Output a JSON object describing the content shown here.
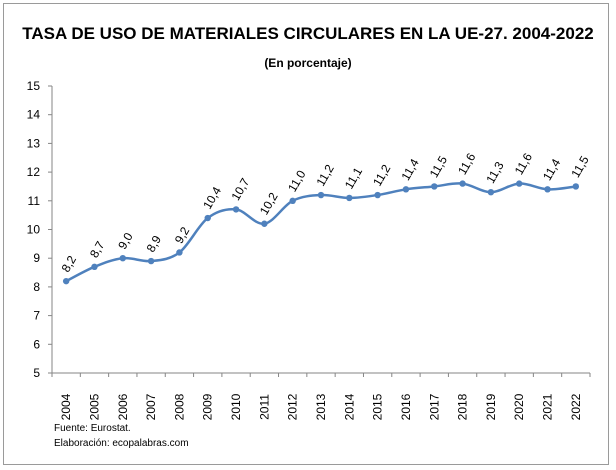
{
  "chart_data": {
    "type": "line",
    "title": "TASA DE USO DE MATERIALES CIRCULARES EN LA UE-27. 2004-2022",
    "subtitle": "(En porcentaje)",
    "categories": [
      "2004",
      "2005",
      "2006",
      "2007",
      "2008",
      "2009",
      "2010",
      "2011",
      "2012",
      "2013",
      "2014",
      "2015",
      "2016",
      "2017",
      "2018",
      "2019",
      "2020",
      "2021",
      "2022"
    ],
    "values": [
      8.2,
      8.7,
      9.0,
      8.9,
      9.2,
      10.4,
      10.7,
      10.2,
      11.0,
      11.2,
      11.1,
      11.2,
      11.4,
      11.5,
      11.6,
      11.3,
      11.6,
      11.4,
      11.5
    ],
    "data_labels": [
      "8,2",
      "8,7",
      "9,0",
      "8,9",
      "9,2",
      "10,4",
      "10,7",
      "10,2",
      "11,0",
      "11,2",
      "11,1",
      "11,2",
      "11,4",
      "11,5",
      "11,6",
      "11,3",
      "11,6",
      "11,4",
      "11,5"
    ],
    "ylim": [
      5,
      15
    ],
    "yticks": [
      5,
      6,
      7,
      8,
      9,
      10,
      11,
      12,
      13,
      14,
      15
    ],
    "grid": false,
    "smooth": true,
    "line_color": "#4f81bd",
    "xlabel": "",
    "ylabel": ""
  },
  "footer": {
    "source": "Fuente: Eurostat.",
    "credit": "Elaboración: ecopalabras.com"
  }
}
